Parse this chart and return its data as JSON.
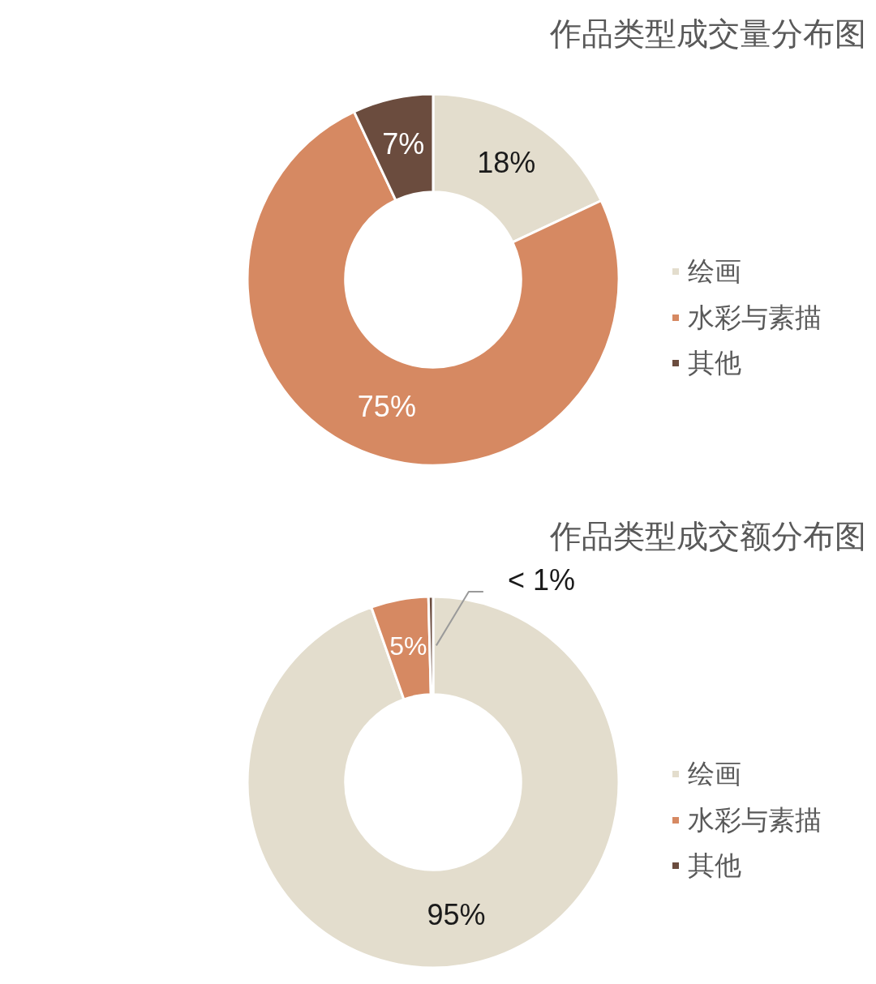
{
  "chart_data": [
    {
      "type": "donut",
      "title": "作品类型成交量分布图",
      "categories": [
        "绘画",
        "水彩与素描",
        "其他"
      ],
      "values": [
        18,
        75,
        7
      ],
      "colors": [
        "#e3ddcd",
        "#d68962",
        "#6b4c3e"
      ],
      "value_labels": [
        "18%",
        "75%",
        "7%"
      ],
      "legend": "right"
    },
    {
      "type": "donut",
      "title": "作品类型成交额分布图",
      "categories": [
        "绘画",
        "水彩与素描",
        "其他"
      ],
      "values": [
        94.6,
        5,
        0.4
      ],
      "colors": [
        "#e3ddcd",
        "#d68962",
        "#6b4c3e"
      ],
      "value_labels": [
        "95%",
        "5%",
        "< 1%"
      ],
      "legend": "right"
    }
  ]
}
